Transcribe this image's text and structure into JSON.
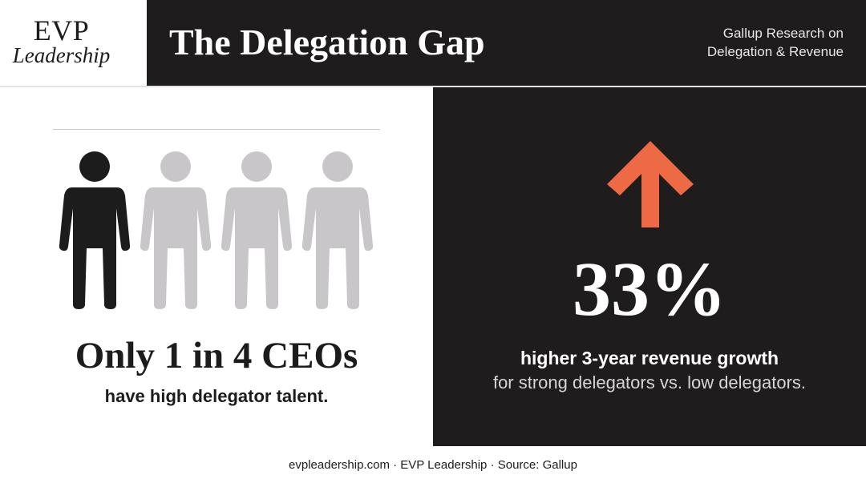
{
  "header": {
    "logo_line1": "EVP",
    "logo_line2": "Leadership",
    "title": "The Delegation Gap",
    "subtitle_line1": "Gallup Research on",
    "subtitle_line2": "Delegation & Revenue"
  },
  "left_panel": {
    "icon": "person-icon",
    "people_total": 4,
    "people_highlighted": 1,
    "highlight_color": "#1c1c1c",
    "muted_color": "#c8c6c9",
    "stat": "Only 1 in 4 CEOs",
    "stat_sub": "have high delegator talent."
  },
  "right_panel": {
    "icon": "up-arrow-icon",
    "arrow_color": "#ee6a44",
    "percent": "33%",
    "line1": "higher 3-year revenue growth",
    "line2": "for strong delegators vs. low delegators."
  },
  "footer": {
    "text": "evpleadership.com · EVP Leadership · Source: Gallup"
  }
}
